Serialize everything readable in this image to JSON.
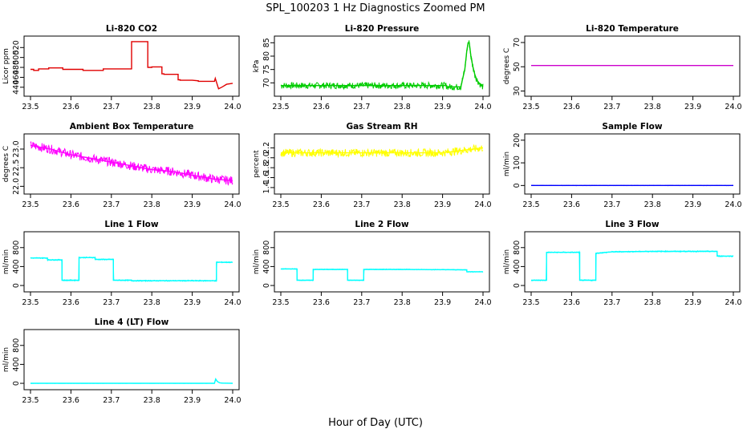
{
  "figure": {
    "title": "SPL_100203 1 Hz Diagnostics Zoomed PM",
    "xlabel": "Hour of Day (UTC)"
  },
  "chart_data": [
    {
      "type": "line",
      "title": "Li-820 CO2",
      "ylabel": "Licor ppm",
      "color": "#e00000",
      "xlim": [
        23.5,
        24.0
      ],
      "ylim": [
        430,
        535
      ],
      "xticks": [
        "23.5",
        "23.6",
        "23.7",
        "23.8",
        "23.9",
        "24.0"
      ],
      "yticks": [
        "440",
        "460",
        "480",
        "500",
        "520"
      ],
      "series": [
        {
          "x": [
            23.5,
            23.508,
            23.508,
            23.52,
            23.52,
            23.545,
            23.545,
            23.58,
            23.58,
            23.63,
            23.63,
            23.68,
            23.68,
            23.75,
            23.75,
            23.75,
            23.79,
            23.79,
            23.8,
            23.8,
            23.825,
            23.825,
            23.83,
            23.83,
            23.865,
            23.865,
            23.87,
            23.87,
            23.9,
            23.9,
            23.915,
            23.915,
            23.955,
            23.957,
            23.965,
            23.975,
            23.985,
            24.0
          ],
          "y": [
            476,
            476,
            474,
            474,
            477,
            477,
            479,
            479,
            476,
            476,
            474,
            474,
            477,
            477,
            476,
            532,
            532,
            480,
            480,
            481,
            481,
            467,
            467,
            466,
            466,
            455,
            455,
            454,
            454,
            454,
            453,
            452,
            452,
            458,
            437,
            441,
            446,
            448
          ]
        }
      ]
    },
    {
      "type": "line",
      "title": "Li-820 Pressure",
      "ylabel": "kPa",
      "color": "#00cc00",
      "xlim": [
        23.5,
        24.0
      ],
      "ylim": [
        66.5,
        86
      ],
      "xticks": [
        "23.5",
        "23.6",
        "23.7",
        "23.8",
        "23.9",
        "24.0"
      ],
      "yticks": [
        "70",
        "75",
        "80",
        "85"
      ],
      "series": [
        {
          "x": [
            23.5,
            23.6,
            23.7,
            23.8,
            23.9,
            23.91,
            23.91,
            23.945,
            23.955,
            23.96,
            23.963,
            23.966,
            23.97,
            23.975,
            23.98,
            23.985,
            23.99,
            23.995,
            24.0
          ],
          "y": [
            69,
            69,
            69,
            69,
            69,
            69,
            68.5,
            68.5,
            75,
            82,
            85,
            85,
            80,
            76,
            73,
            71,
            70,
            69,
            68.5
          ]
        }
      ]
    },
    {
      "type": "line",
      "title": "Li-820 Temperature",
      "ylabel": "degrees C",
      "color": "#cc00cc",
      "xlim": [
        23.5,
        24.0
      ],
      "ylim": [
        29,
        72
      ],
      "xticks": [
        "23.5",
        "23.6",
        "23.7",
        "23.8",
        "23.9",
        "24.0"
      ],
      "yticks": [
        "30",
        "50",
        "70"
      ],
      "series": [
        {
          "x": [
            23.5,
            24.0
          ],
          "y": [
            51,
            51
          ]
        }
      ]
    },
    {
      "type": "line",
      "title": "Ambient Box Temperature",
      "ylabel": "degrees C",
      "color": "#ff00ff",
      "xlim": [
        23.5,
        24.0
      ],
      "ylim": [
        21.9,
        23.3
      ],
      "xticks": [
        "23.5",
        "23.6",
        "23.7",
        "23.8",
        "23.9",
        "24.0"
      ],
      "yticks": [
        "22.0",
        "22.5",
        "23.0"
      ],
      "series": [
        {
          "x": [
            23.5,
            23.55,
            23.6,
            23.65,
            23.7,
            23.75,
            23.8,
            23.85,
            23.9,
            23.95,
            24.0
          ],
          "y": [
            23.1,
            23.0,
            22.85,
            22.75,
            22.65,
            22.55,
            22.45,
            22.4,
            22.3,
            22.2,
            22.15
          ]
        }
      ]
    },
    {
      "type": "line",
      "title": "Gas Stream RH",
      "ylabel": "percent",
      "color": "#ffff00",
      "xlim": [
        23.5,
        24.0
      ],
      "ylim": [
        1.35,
        2.4
      ],
      "xticks": [
        "23.5",
        "23.6",
        "23.7",
        "23.8",
        "23.9",
        "24.0"
      ],
      "yticks": [
        "1.4",
        "1.6",
        "1.8",
        "2.0",
        "2.2"
      ],
      "series": [
        {
          "x": [
            23.5,
            23.6,
            23.7,
            23.8,
            23.9,
            23.95,
            24.0
          ],
          "y": [
            2.1,
            2.1,
            2.1,
            2.1,
            2.1,
            2.15,
            2.2
          ]
        }
      ]
    },
    {
      "type": "line",
      "title": "Sample Flow",
      "ylabel": "ml/min",
      "color": "#0000ff",
      "xlim": [
        23.5,
        24.0
      ],
      "ylim": [
        -20,
        210
      ],
      "xticks": [
        "23.5",
        "23.6",
        "23.7",
        "23.8",
        "23.9",
        "24.0"
      ],
      "yticks": [
        "0",
        "100",
        "200"
      ],
      "series": [
        {
          "x": [
            23.5,
            24.0
          ],
          "y": [
            0,
            0
          ]
        }
      ]
    },
    {
      "type": "line",
      "title": "Line 1 Flow",
      "ylabel": "ml/min",
      "color": "#00ffff",
      "xlim": [
        23.5,
        24.0
      ],
      "ylim": [
        -50,
        1050
      ],
      "xticks": [
        "23.5",
        "23.6",
        "23.7",
        "23.8",
        "23.9",
        "24.0"
      ],
      "yticks": [
        "0",
        "400",
        "800"
      ],
      "series": [
        {
          "x": [
            23.5,
            23.542,
            23.542,
            23.578,
            23.578,
            23.62,
            23.62,
            23.66,
            23.66,
            23.705,
            23.705,
            23.75,
            23.75,
            23.8,
            23.85,
            23.9,
            23.96,
            23.96,
            24.0
          ],
          "y": [
            580,
            580,
            540,
            540,
            110,
            110,
            590,
            590,
            550,
            550,
            110,
            110,
            100,
            100,
            100,
            100,
            100,
            490,
            490
          ]
        }
      ]
    },
    {
      "type": "line",
      "title": "Line 2 Flow",
      "ylabel": "ml/min",
      "color": "#00ffff",
      "xlim": [
        23.5,
        24.0
      ],
      "ylim": [
        -50,
        1050
      ],
      "xticks": [
        "23.5",
        "23.6",
        "23.7",
        "23.8",
        "23.9",
        "24.0"
      ],
      "yticks": [
        "0",
        "400",
        "800"
      ],
      "series": [
        {
          "x": [
            23.5,
            23.54,
            23.54,
            23.58,
            23.58,
            23.665,
            23.665,
            23.705,
            23.705,
            23.8,
            23.9,
            23.96,
            23.96,
            24.0
          ],
          "y": [
            350,
            350,
            110,
            110,
            340,
            340,
            110,
            110,
            340,
            340,
            335,
            330,
            290,
            290
          ]
        }
      ]
    },
    {
      "type": "line",
      "title": "Line 3 Flow",
      "ylabel": "ml/min",
      "color": "#00ffff",
      "xlim": [
        23.5,
        24.0
      ],
      "ylim": [
        -50,
        1050
      ],
      "xticks": [
        "23.5",
        "23.6",
        "23.7",
        "23.8",
        "23.9",
        "24.0"
      ],
      "yticks": [
        "0",
        "400",
        "800"
      ],
      "series": [
        {
          "x": [
            23.5,
            23.538,
            23.538,
            23.62,
            23.62,
            23.66,
            23.66,
            23.7,
            23.8,
            23.9,
            23.96,
            23.96,
            24.0
          ],
          "y": [
            110,
            110,
            700,
            700,
            110,
            110,
            680,
            710,
            720,
            720,
            720,
            620,
            620
          ]
        }
      ]
    },
    {
      "type": "line",
      "title": "Line 4 (LT) Flow",
      "ylabel": "ml/min",
      "color": "#00ffff",
      "xlim": [
        23.5,
        24.0
      ],
      "ylim": [
        -50,
        1050
      ],
      "xticks": [
        "23.5",
        "23.6",
        "23.7",
        "23.8",
        "23.9",
        "24.0"
      ],
      "yticks": [
        "0",
        "400",
        "800"
      ],
      "series": [
        {
          "x": [
            23.5,
            23.955,
            23.958,
            23.962,
            23.968,
            23.975,
            24.0
          ],
          "y": [
            0,
            0,
            90,
            40,
            10,
            5,
            0
          ]
        }
      ]
    }
  ]
}
